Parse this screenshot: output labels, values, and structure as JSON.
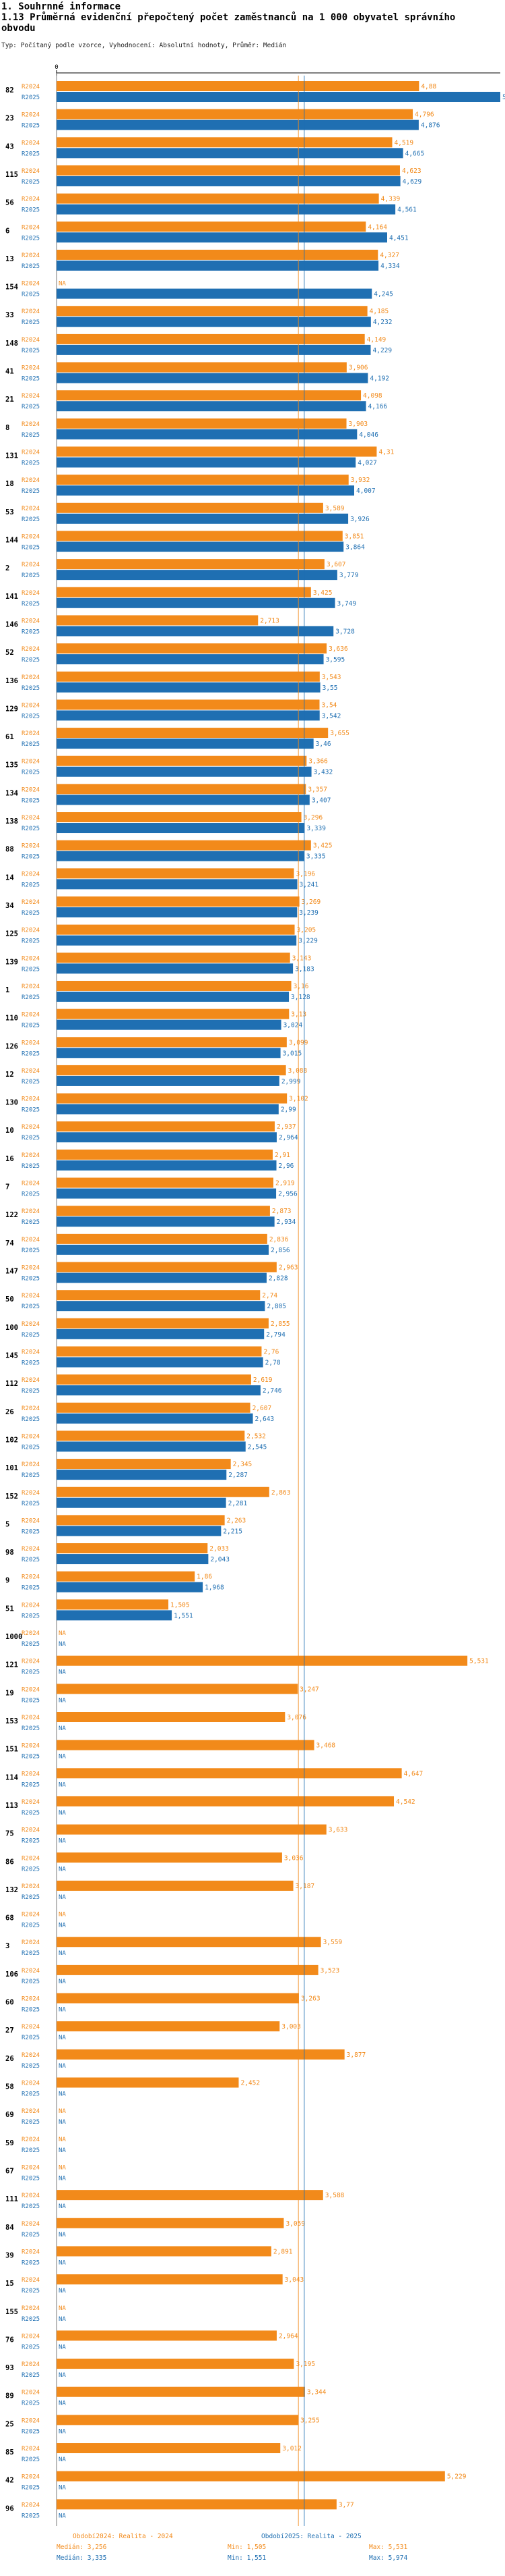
{
  "header": {
    "section": "1. Souhrnné informace",
    "title": "1.13 Průměrná evidenční přepočtený počet zaměstnanců na 1 000 obyvatel správního obvodu",
    "subtitle": "Typ: Počítaný podle vzorce, Vyhodnocení: Absolutní hodnoty, Průměr: Medián"
  },
  "colors": {
    "orange": "#f28a1a",
    "blue": "#1f6fb2"
  },
  "chart_data": {
    "type": "bar",
    "orientation": "horizontal",
    "axis_tick_label": "0",
    "missing_label": "NA",
    "xlim": [
      0,
      5.974
    ],
    "series": [
      {
        "key": "2024",
        "label": "R2024",
        "name": "Období2024: Realita - 2024",
        "color": "#f28a1a"
      },
      {
        "key": "2025",
        "label": "R2025",
        "name": "Období2025: Realita - 2025",
        "color": "#1f6fb2"
      }
    ],
    "reference_lines": [
      {
        "series": "2024",
        "type": "median",
        "value": 3.256
      },
      {
        "series": "2025",
        "type": "median",
        "value": 3.335
      }
    ],
    "categories": [
      {
        "code": "82",
        "v2024": 4.88,
        "v2025": 5.974
      },
      {
        "code": "23",
        "v2024": 4.796,
        "v2025": 4.876
      },
      {
        "code": "43",
        "v2024": 4.519,
        "v2025": 4.665
      },
      {
        "code": "115",
        "v2024": 4.623,
        "v2025": 4.629
      },
      {
        "code": "56",
        "v2024": 4.339,
        "v2025": 4.561
      },
      {
        "code": "6",
        "v2024": 4.164,
        "v2025": 4.451
      },
      {
        "code": "13",
        "v2024": 4.327,
        "v2025": 4.334
      },
      {
        "code": "154",
        "v2024": null,
        "v2025": 4.245
      },
      {
        "code": "33",
        "v2024": 4.185,
        "v2025": 4.232
      },
      {
        "code": "148",
        "v2024": 4.149,
        "v2025": 4.229
      },
      {
        "code": "41",
        "v2024": 3.906,
        "v2025": 4.192
      },
      {
        "code": "21",
        "v2024": 4.098,
        "v2025": 4.166
      },
      {
        "code": "8",
        "v2024": 3.903,
        "v2025": 4.046
      },
      {
        "code": "131",
        "v2024": 4.31,
        "v2025": 4.027
      },
      {
        "code": "18",
        "v2024": 3.932,
        "v2025": 4.007
      },
      {
        "code": "53",
        "v2024": 3.589,
        "v2025": 3.926
      },
      {
        "code": "144",
        "v2024": 3.851,
        "v2025": 3.864
      },
      {
        "code": "2",
        "v2024": 3.607,
        "v2025": 3.779
      },
      {
        "code": "141",
        "v2024": 3.425,
        "v2025": 3.749
      },
      {
        "code": "146",
        "v2024": 2.713,
        "v2025": 3.728
      },
      {
        "code": "52",
        "v2024": 3.636,
        "v2025": 3.595
      },
      {
        "code": "136",
        "v2024": 3.543,
        "v2025": 3.55
      },
      {
        "code": "129",
        "v2024": 3.54,
        "v2025": 3.542
      },
      {
        "code": "61",
        "v2024": 3.655,
        "v2025": 3.46
      },
      {
        "code": "135",
        "v2024": 3.366,
        "v2025": 3.432
      },
      {
        "code": "134",
        "v2024": 3.357,
        "v2025": 3.407
      },
      {
        "code": "138",
        "v2024": 3.296,
        "v2025": 3.339
      },
      {
        "code": "88",
        "v2024": 3.425,
        "v2025": 3.335
      },
      {
        "code": "14",
        "v2024": 3.196,
        "v2025": 3.241
      },
      {
        "code": "34",
        "v2024": 3.269,
        "v2025": 3.239
      },
      {
        "code": "125",
        "v2024": 3.205,
        "v2025": 3.229
      },
      {
        "code": "139",
        "v2024": 3.143,
        "v2025": 3.183
      },
      {
        "code": "1",
        "v2024": 3.16,
        "v2025": 3.128
      },
      {
        "code": "110",
        "v2024": 3.13,
        "v2025": 3.024
      },
      {
        "code": "126",
        "v2024": 3.099,
        "v2025": 3.015
      },
      {
        "code": "12",
        "v2024": 3.088,
        "v2025": 2.999
      },
      {
        "code": "130",
        "v2024": 3.102,
        "v2025": 2.99
      },
      {
        "code": "10",
        "v2024": 2.937,
        "v2025": 2.964
      },
      {
        "code": "16",
        "v2024": 2.91,
        "v2025": 2.96
      },
      {
        "code": "7",
        "v2024": 2.919,
        "v2025": 2.956
      },
      {
        "code": "122",
        "v2024": 2.873,
        "v2025": 2.934
      },
      {
        "code": "74",
        "v2024": 2.836,
        "v2025": 2.856
      },
      {
        "code": "147",
        "v2024": 2.963,
        "v2025": 2.828
      },
      {
        "code": "50",
        "v2024": 2.74,
        "v2025": 2.805
      },
      {
        "code": "100",
        "v2024": 2.855,
        "v2025": 2.794
      },
      {
        "code": "145",
        "v2024": 2.76,
        "v2025": 2.78
      },
      {
        "code": "112",
        "v2024": 2.619,
        "v2025": 2.746
      },
      {
        "code": "26",
        "v2024": 2.607,
        "v2025": 2.643
      },
      {
        "code": "102",
        "v2024": 2.532,
        "v2025": 2.545
      },
      {
        "code": "101",
        "v2024": 2.345,
        "v2025": 2.287
      },
      {
        "code": "152",
        "v2024": 2.863,
        "v2025": 2.281
      },
      {
        "code": "5",
        "v2024": 2.263,
        "v2025": 2.215
      },
      {
        "code": "98",
        "v2024": 2.033,
        "v2025": 2.043
      },
      {
        "code": "9",
        "v2024": 1.86,
        "v2025": 1.968
      },
      {
        "code": "51",
        "v2024": 1.505,
        "v2025": 1.551
      },
      {
        "code": "1000",
        "v2024": null,
        "v2025": null
      },
      {
        "code": "121",
        "v2024": 5.531,
        "v2025": null
      },
      {
        "code": "19",
        "v2024": 3.247,
        "v2025": null
      },
      {
        "code": "153",
        "v2024": 3.076,
        "v2025": null
      },
      {
        "code": "151",
        "v2024": 3.468,
        "v2025": null
      },
      {
        "code": "114",
        "v2024": 4.647,
        "v2025": null
      },
      {
        "code": "113",
        "v2024": 4.542,
        "v2025": null
      },
      {
        "code": "75",
        "v2024": 3.633,
        "v2025": null
      },
      {
        "code": "86",
        "v2024": 3.036,
        "v2025": null
      },
      {
        "code": "132",
        "v2024": 3.187,
        "v2025": null
      },
      {
        "code": "68",
        "v2024": null,
        "v2025": null
      },
      {
        "code": "3",
        "v2024": 3.559,
        "v2025": null
      },
      {
        "code": "106",
        "v2024": 3.523,
        "v2025": null
      },
      {
        "code": "60",
        "v2024": 3.263,
        "v2025": null
      },
      {
        "code": "27",
        "v2024": 3.003,
        "v2025": null
      },
      {
        "code": "26",
        "v2024": 3.877,
        "v2025": null
      },
      {
        "code": "58",
        "v2024": 2.452,
        "v2025": null
      },
      {
        "code": "69",
        "v2024": null,
        "v2025": null
      },
      {
        "code": "59",
        "v2024": null,
        "v2025": null
      },
      {
        "code": "67",
        "v2024": null,
        "v2025": null
      },
      {
        "code": "111",
        "v2024": 3.588,
        "v2025": null
      },
      {
        "code": "84",
        "v2024": 3.059,
        "v2025": null
      },
      {
        "code": "39",
        "v2024": 2.891,
        "v2025": null
      },
      {
        "code": "15",
        "v2024": 3.043,
        "v2025": null
      },
      {
        "code": "155",
        "v2024": null,
        "v2025": null
      },
      {
        "code": "76",
        "v2024": 2.964,
        "v2025": null
      },
      {
        "code": "93",
        "v2024": 3.195,
        "v2025": null
      },
      {
        "code": "89",
        "v2024": 3.344,
        "v2025": null
      },
      {
        "code": "25",
        "v2024": 3.255,
        "v2025": null
      },
      {
        "code": "85",
        "v2024": 3.012,
        "v2025": null
      },
      {
        "code": "42",
        "v2024": 5.229,
        "v2025": null
      },
      {
        "code": "96",
        "v2024": 3.77,
        "v2025": null
      }
    ]
  },
  "footer": {
    "series2024": {
      "name": "Období2024: Realita - 2024",
      "median": "Medián: 3,256",
      "min": "Min: 1,505",
      "max": "Max: 5,531"
    },
    "series2025": {
      "name": "Období2025: Realita - 2025",
      "median": "Medián: 3,335",
      "min": "Min: 1,551",
      "max": "Max: 5,974"
    }
  }
}
